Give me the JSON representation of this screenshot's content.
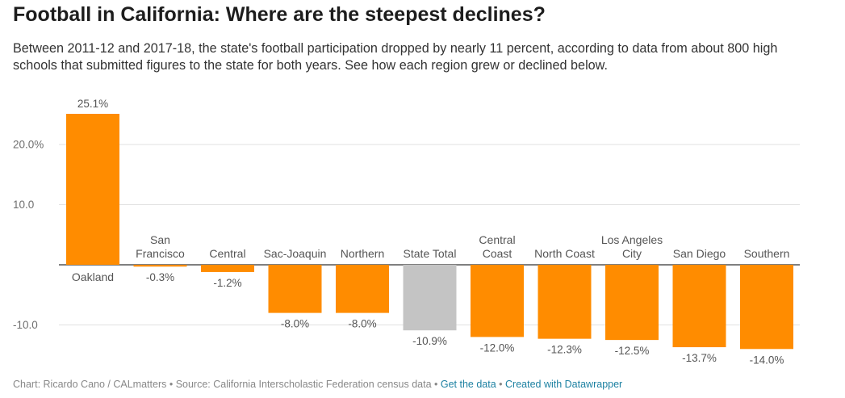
{
  "header": {
    "title": "Football in California: Where are the steepest declines?",
    "description": "Between 2011-12 and 2017-18, the state's football participation dropped by nearly 11 percent, according to data from about 800 high schools that submitted figures to the state for both years. See how each region grew or declined below."
  },
  "chart_data": {
    "type": "bar",
    "title": "Football in California: Where are the steepest declines?",
    "xlabel": "",
    "ylabel": "",
    "ylim": [
      -14.0,
      25.1
    ],
    "grid": true,
    "yticks": [
      {
        "value": 20,
        "label": "20.0%"
      },
      {
        "value": 10,
        "label": "10.0"
      },
      {
        "value": -10,
        "label": "-10.0"
      }
    ],
    "categories": [
      [
        "Oakland"
      ],
      [
        "San",
        "Francisco"
      ],
      [
        "Central"
      ],
      [
        "Sac-Joaquin"
      ],
      [
        "Northern"
      ],
      [
        "State Total"
      ],
      [
        "Central",
        "Coast"
      ],
      [
        "North Coast"
      ],
      [
        "Los Angeles",
        "City"
      ],
      [
        "San Diego"
      ],
      [
        "Southern"
      ]
    ],
    "values": [
      25.1,
      -0.3,
      -1.2,
      -8.0,
      -8.0,
      -10.9,
      -12.0,
      -12.3,
      -12.5,
      -13.7,
      -14.0
    ],
    "value_labels": [
      "25.1%",
      "-0.3%",
      "-1.2%",
      "-8.0%",
      "-8.0%",
      "-10.9%",
      "-12.0%",
      "-12.3%",
      "-12.5%",
      "-13.7%",
      "-14.0%"
    ],
    "bar_colors": [
      "#ff8c00",
      "#ff8c00",
      "#ff8c00",
      "#ff8c00",
      "#ff8c00",
      "#c4c4c4",
      "#ff8c00",
      "#ff8c00",
      "#ff8c00",
      "#ff8c00",
      "#ff8c00"
    ]
  },
  "footer": {
    "credit": "Chart: Ricardo Cano / CALmatters",
    "separator": " • ",
    "source": "Source: California Interscholastic Federation census data",
    "get_data_link": "Get the data",
    "created_with_link": "Created with Datawrapper"
  }
}
